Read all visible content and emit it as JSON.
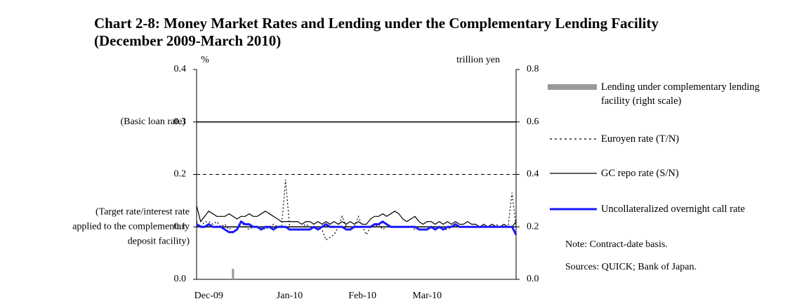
{
  "chart_data": {
    "type": "line",
    "title": "Chart 2-8: Money Market Rates and Lending under the Complementary Lending Facility",
    "subtitle": "(December 2009-March 2010)",
    "y_unit": "%",
    "y2_unit": "trillion yen",
    "categories": [
      null,
      null,
      null,
      "Dec-09",
      null,
      null,
      null,
      null,
      null,
      null,
      null,
      null,
      null,
      null,
      null,
      null,
      null,
      null,
      null,
      null,
      null,
      null,
      null,
      "Jan-10",
      null,
      null,
      null,
      null,
      null,
      null,
      null,
      null,
      null,
      null,
      null,
      null,
      null,
      null,
      null,
      null,
      null,
      "Feb-10",
      null,
      null,
      null,
      null,
      null,
      null,
      null,
      null,
      null,
      null,
      null,
      null,
      null,
      null,
      null,
      "Mar-10",
      null,
      null,
      null,
      null,
      null,
      null,
      null,
      null,
      null,
      null,
      null,
      null,
      null,
      null,
      null,
      null,
      null,
      null,
      null,
      null,
      null,
      null
    ],
    "series": [
      {
        "name": "Lending under complementary lending facility (right scale)",
        "kind": "bar",
        "axis": "y2",
        "color": "#999999",
        "values": [
          0,
          0,
          0,
          0,
          0,
          0,
          0,
          0,
          0,
          0.04,
          0,
          0,
          0,
          0,
          0,
          0,
          0,
          0,
          0,
          0,
          0,
          0,
          0,
          0,
          0,
          0,
          0,
          0,
          0,
          0,
          0,
          0,
          0,
          0,
          0,
          0,
          0,
          0,
          0,
          0,
          0,
          0,
          0,
          0,
          0,
          0,
          0,
          0,
          0,
          0,
          0,
          0,
          0,
          0,
          0,
          0,
          0,
          0,
          0,
          0,
          0,
          0,
          0,
          0,
          0,
          0,
          0,
          0,
          0,
          0,
          0,
          0,
          0,
          0,
          0,
          0,
          0,
          0,
          0,
          0
        ]
      },
      {
        "name": "Euroyen rate (T/N)",
        "kind": "line",
        "dash": "dotted",
        "color": "#000000",
        "values": [
          0.11,
          0.1,
          0.11,
          0.11,
          0.105,
          0.11,
          0.1,
          0.105,
          0.095,
          0.1,
          0.1,
          0.11,
          0.1,
          0.095,
          0.1,
          0.1,
          0.1,
          0.095,
          0.1,
          0.105,
          0.1,
          0.1,
          0.19,
          0.1,
          0.1,
          0.1,
          0.1,
          0.105,
          0.1,
          0.1,
          0.1,
          0.095,
          0.075,
          0.08,
          0.085,
          0.1,
          0.12,
          0.1,
          0.1,
          0.1,
          0.12,
          0.1,
          0.085,
          0.1,
          0.1,
          0.105,
          0.095,
          0.1,
          0.1,
          0.1,
          0.1,
          0.1,
          0.1,
          0.1,
          0.095,
          0.1,
          0.1,
          0.1,
          0.1,
          0.095,
          0.1,
          0.095,
          0.095,
          0.1,
          0.1,
          0.1,
          0.1,
          0.1,
          0.1,
          0.1,
          0.1,
          0.1,
          0.1,
          0.1,
          0.105,
          0.1,
          0.1,
          0.1,
          0.165,
          0.1
        ]
      },
      {
        "name": "GC repo rate (S/N)",
        "kind": "line",
        "dash": "solid",
        "color": "#000000",
        "values": [
          0.14,
          0.11,
          0.12,
          0.13,
          0.125,
          0.12,
          0.12,
          0.12,
          0.125,
          0.12,
          0.115,
          0.12,
          0.12,
          0.125,
          0.12,
          0.12,
          0.125,
          0.13,
          0.125,
          0.12,
          0.115,
          0.11,
          0.11,
          0.11,
          0.11,
          0.11,
          0.105,
          0.11,
          0.11,
          0.105,
          0.11,
          0.105,
          0.11,
          0.105,
          0.11,
          0.105,
          0.11,
          0.105,
          0.11,
          0.105,
          0.11,
          0.105,
          0.105,
          0.115,
          0.12,
          0.12,
          0.125,
          0.12,
          0.125,
          0.13,
          0.125,
          0.115,
          0.11,
          0.115,
          0.12,
          0.11,
          0.105,
          0.11,
          0.11,
          0.105,
          0.11,
          0.105,
          0.11,
          0.105,
          0.11,
          0.105,
          0.105,
          0.11,
          0.105,
          0.105,
          0.1,
          0.105,
          0.1,
          0.105,
          0.1,
          0.1,
          0.105,
          0.1,
          0.1,
          0.11
        ]
      },
      {
        "name": "Uncollateralized overnight call rate",
        "kind": "line",
        "dash": "thick",
        "color": "#1a1aff",
        "values": [
          0.105,
          0.1,
          0.1,
          0.105,
          0.1,
          0.1,
          0.1,
          0.095,
          0.09,
          0.09,
          0.095,
          0.11,
          0.105,
          0.105,
          0.1,
          0.1,
          0.095,
          0.1,
          0.1,
          0.095,
          0.1,
          0.1,
          0.1,
          0.095,
          0.095,
          0.095,
          0.095,
          0.095,
          0.095,
          0.1,
          0.095,
          0.1,
          0.105,
          0.1,
          0.1,
          0.1,
          0.1,
          0.095,
          0.095,
          0.1,
          0.1,
          0.1,
          0.1,
          0.1,
          0.105,
          0.105,
          0.11,
          0.105,
          0.1,
          0.1,
          0.1,
          0.1,
          0.1,
          0.1,
          0.1,
          0.095,
          0.095,
          0.095,
          0.1,
          0.095,
          0.1,
          0.095,
          0.1,
          0.1,
          0.105,
          0.1,
          0.1,
          0.1,
          0.1,
          0.1,
          0.1,
          0.1,
          0.1,
          0.1,
          0.1,
          0.1,
          0.1,
          0.1,
          0.1,
          0.085
        ]
      }
    ],
    "ylim": [
      0,
      0.4
    ],
    "yticks": [
      {
        "value": 0,
        "label": "0.0"
      },
      {
        "value": 0.1,
        "label": "0.1"
      },
      {
        "value": 0.2,
        "label": "0.2"
      },
      {
        "value": 0.3,
        "label": "0.3"
      },
      {
        "value": 0.4,
        "label": "0.4"
      }
    ],
    "y2lim": [
      0,
      0.8
    ],
    "y2ticks": [
      {
        "value": 0,
        "label": "0.0"
      },
      {
        "value": 0.2,
        "label": "0.2"
      },
      {
        "value": 0.4,
        "label": "0.4"
      },
      {
        "value": 0.6,
        "label": "0.6"
      },
      {
        "value": 0.8,
        "label": "0.8"
      }
    ],
    "reference_lines": [
      {
        "value": 0.3,
        "style": "solid",
        "label": [
          "(Basic loan rate)"
        ]
      },
      {
        "value": 0.2,
        "style": "dashed"
      },
      {
        "value": 0.1,
        "style": "solid",
        "label": [
          "(Target rate/interest rate",
          "applied to the complementary",
          "deposit facility)"
        ]
      }
    ],
    "legend": "right",
    "notes": [
      "Note: Contract-date basis.",
      "Sources: QUICK; Bank of Japan."
    ]
  }
}
